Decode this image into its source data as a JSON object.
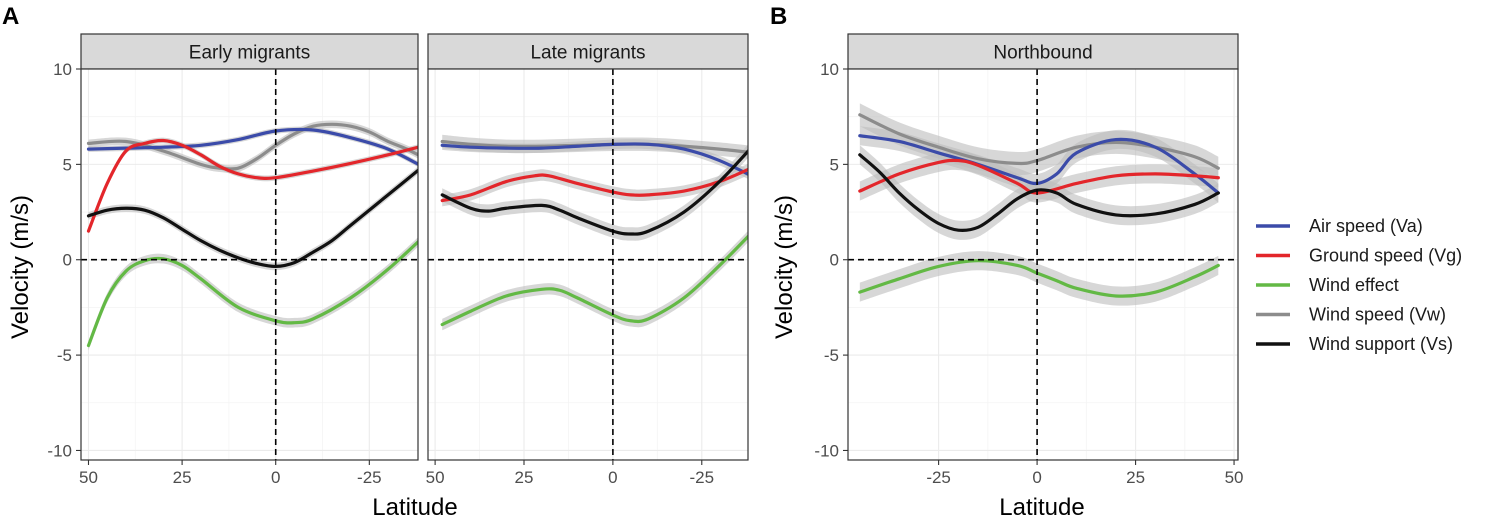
{
  "colors": {
    "Va": "#3b4ba9",
    "Vg": "#e3262b",
    "We": "#63b945",
    "Vw": "#8c8c8c",
    "Vs": "#111111"
  },
  "legend": [
    {
      "key": "Va",
      "label": "Air speed (Va)"
    },
    {
      "key": "Vg",
      "label": "Ground speed (Vg)"
    },
    {
      "key": "We",
      "label": "Wind effect"
    },
    {
      "key": "Vw",
      "label": "Wind speed (Vw)"
    },
    {
      "key": "Vs",
      "label": "Wind support (Vs)"
    }
  ],
  "figure_labels": {
    "A": "A",
    "B": "B"
  },
  "axis_titles": {
    "x": "Latitude",
    "y": "Velocity (m/s)"
  },
  "chart_data": [
    {
      "type": "line",
      "title": "Early migrants",
      "xlabel": "Latitude",
      "ylabel": "Velocity (m/s)",
      "xlim": [
        52,
        -38
      ],
      "ylim": [
        -10.5,
        10
      ],
      "xticks": [
        50,
        25,
        0,
        -25
      ],
      "xtick_labels": [
        "50",
        "25",
        "0",
        "-25"
      ],
      "yticks": [
        10,
        5,
        0,
        -5,
        -10
      ],
      "ytick_labels": [
        "10",
        "5",
        "0",
        "-5",
        "-10"
      ],
      "ref_lines": {
        "x": 0,
        "y": 0
      },
      "series": [
        {
          "key": "Va",
          "x": [
            50,
            40,
            30,
            20,
            10,
            0,
            -10,
            -20,
            -30,
            -40
          ],
          "y": [
            5.8,
            5.85,
            5.9,
            6.0,
            6.3,
            6.75,
            6.8,
            6.4,
            5.8,
            4.8
          ],
          "band": 0.15
        },
        {
          "key": "Vg",
          "x": [
            50,
            45,
            40,
            35,
            30,
            25,
            20,
            15,
            10,
            5,
            0,
            -10,
            -20,
            -30,
            -40
          ],
          "y": [
            1.5,
            4.0,
            5.7,
            6.1,
            6.25,
            6.0,
            5.5,
            4.9,
            4.5,
            4.3,
            4.3,
            4.65,
            5.05,
            5.5,
            6.0
          ],
          "band": 0.15
        },
        {
          "key": "We",
          "x": [
            50,
            45,
            40,
            35,
            30,
            25,
            20,
            10,
            0,
            -5,
            -10,
            -20,
            -30,
            -40
          ],
          "y": [
            -4.5,
            -2.0,
            -0.6,
            -0.05,
            0.05,
            -0.3,
            -1.0,
            -2.5,
            -3.2,
            -3.3,
            -3.1,
            -2.0,
            -0.5,
            1.3
          ],
          "band": 0.25
        },
        {
          "key": "Vw",
          "x": [
            50,
            40,
            30,
            20,
            15,
            10,
            5,
            0,
            -5,
            -10,
            -15,
            -20,
            -25,
            -30,
            -35,
            -40
          ],
          "y": [
            6.1,
            6.2,
            5.7,
            5.0,
            4.8,
            4.8,
            5.3,
            6.0,
            6.6,
            7.0,
            7.1,
            7.0,
            6.7,
            6.2,
            5.8,
            5.3
          ],
          "band": 0.2
        },
        {
          "key": "Vs",
          "x": [
            50,
            45,
            40,
            35,
            30,
            25,
            20,
            15,
            10,
            5,
            0,
            -5,
            -10,
            -15,
            -20,
            -30,
            -40
          ],
          "y": [
            2.3,
            2.6,
            2.7,
            2.6,
            2.2,
            1.6,
            1.0,
            0.5,
            0.1,
            -0.2,
            -0.35,
            -0.15,
            0.4,
            1.0,
            1.8,
            3.4,
            5.0
          ],
          "band": 0.2
        }
      ]
    },
    {
      "type": "line",
      "title": "Late migrants",
      "xlabel": "Latitude",
      "ylabel": "Velocity (m/s)",
      "xlim": [
        52,
        -38
      ],
      "ylim": [
        -10.5,
        10
      ],
      "xticks": [
        50,
        25,
        0,
        -25
      ],
      "xtick_labels": [
        "50",
        "25",
        "0",
        "-25"
      ],
      "yticks": [
        10,
        5,
        0,
        -5,
        -10
      ],
      "ytick_labels": [
        "10",
        "5",
        "0",
        "-5",
        "-10"
      ],
      "ref_lines": {
        "x": 0,
        "y": 0
      },
      "series": [
        {
          "key": "Va",
          "x": [
            48,
            40,
            30,
            20,
            10,
            0,
            -10,
            -20,
            -30,
            -40
          ],
          "y": [
            6.0,
            5.9,
            5.85,
            5.85,
            5.95,
            6.05,
            6.05,
            5.8,
            5.2,
            4.3
          ],
          "band": 0.25
        },
        {
          "key": "Vg",
          "x": [
            48,
            40,
            30,
            22,
            18,
            10,
            0,
            -5,
            -10,
            -20,
            -30,
            -40
          ],
          "y": [
            3.1,
            3.4,
            4.1,
            4.4,
            4.4,
            4.0,
            3.55,
            3.4,
            3.4,
            3.6,
            4.1,
            4.9
          ],
          "band": 0.3
        },
        {
          "key": "We",
          "x": [
            48,
            40,
            30,
            20,
            15,
            10,
            0,
            -5,
            -10,
            -20,
            -30,
            -40
          ],
          "y": [
            -3.4,
            -2.7,
            -1.9,
            -1.55,
            -1.6,
            -2.0,
            -2.9,
            -3.2,
            -3.1,
            -2.0,
            -0.3,
            1.6
          ],
          "band": 0.3
        },
        {
          "key": "Vw",
          "x": [
            48,
            40,
            30,
            20,
            10,
            0,
            -10,
            -20,
            -30,
            -40
          ],
          "y": [
            6.2,
            6.05,
            5.95,
            5.95,
            6.0,
            6.05,
            6.05,
            5.95,
            5.8,
            5.6
          ],
          "band": 0.35
        },
        {
          "key": "Vs",
          "x": [
            48,
            40,
            35,
            30,
            20,
            15,
            10,
            0,
            -5,
            -10,
            -20,
            -30,
            -40
          ],
          "y": [
            3.4,
            2.7,
            2.55,
            2.7,
            2.85,
            2.6,
            2.2,
            1.5,
            1.35,
            1.5,
            2.5,
            4.1,
            6.1
          ],
          "band": 0.35
        }
      ]
    },
    {
      "type": "line",
      "title": "Northbound",
      "xlabel": "Latitude",
      "ylabel": "Velocity (m/s)",
      "xlim": [
        -48,
        51
      ],
      "ylim": [
        -10.5,
        10
      ],
      "xticks": [
        -25,
        0,
        25,
        50
      ],
      "xtick_labels": [
        "-25",
        "0",
        "25",
        "50"
      ],
      "yticks": [
        10,
        5,
        0,
        -5,
        -10
      ],
      "ytick_labels": [
        "10",
        "5",
        "0",
        "-5",
        "-10"
      ],
      "ref_lines": {
        "x": 0,
        "y": 0
      },
      "series": [
        {
          "key": "Va",
          "x": [
            -45,
            -35,
            -25,
            -15,
            -5,
            0,
            5,
            10,
            20,
            30,
            40,
            46
          ],
          "y": [
            6.5,
            6.2,
            5.6,
            5.0,
            4.3,
            4.0,
            4.5,
            5.6,
            6.3,
            5.9,
            4.5,
            3.5
          ],
          "band": 0.5
        },
        {
          "key": "Vg",
          "x": [
            -45,
            -35,
            -25,
            -20,
            -15,
            -5,
            0,
            10,
            20,
            30,
            40,
            46
          ],
          "y": [
            3.6,
            4.5,
            5.1,
            5.2,
            4.95,
            4.0,
            3.5,
            4.0,
            4.4,
            4.5,
            4.4,
            4.3
          ],
          "band": 0.5
        },
        {
          "key": "We",
          "x": [
            -45,
            -35,
            -25,
            -15,
            -5,
            0,
            5,
            10,
            20,
            30,
            40,
            46
          ],
          "y": [
            -1.7,
            -1.0,
            -0.35,
            -0.05,
            -0.3,
            -0.7,
            -1.1,
            -1.5,
            -1.9,
            -1.7,
            -0.9,
            -0.3
          ],
          "band": 0.5
        },
        {
          "key": "Vw",
          "x": [
            -45,
            -35,
            -25,
            -15,
            -5,
            0,
            10,
            20,
            30,
            40,
            46
          ],
          "y": [
            7.6,
            6.6,
            5.9,
            5.3,
            5.05,
            5.2,
            5.9,
            6.15,
            5.9,
            5.4,
            4.8
          ],
          "band": 0.6
        },
        {
          "key": "Vs",
          "x": [
            -45,
            -40,
            -35,
            -30,
            -25,
            -20,
            -15,
            -10,
            -5,
            0,
            5,
            10,
            20,
            30,
            40,
            46
          ],
          "y": [
            5.5,
            4.6,
            3.5,
            2.6,
            1.9,
            1.55,
            1.7,
            2.4,
            3.2,
            3.65,
            3.5,
            2.9,
            2.35,
            2.4,
            2.9,
            3.5
          ],
          "band": 0.5
        }
      ]
    }
  ]
}
